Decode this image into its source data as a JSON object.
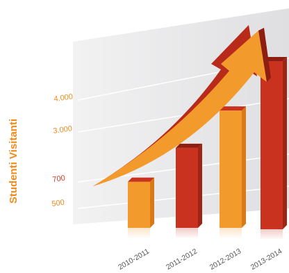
{
  "chart_data": {
    "type": "bar",
    "title": "",
    "xlabel": "",
    "ylabel": "Studenti Visitanti",
    "categories": [
      "2010-2011",
      "2011-2012",
      "2012-2013",
      "2013-2014"
    ],
    "series": [
      {
        "values": [
          500,
          1500,
          2600,
          4100
        ]
      }
    ],
    "yticks": [
      {
        "label": "500",
        "value": 500
      },
      {
        "label": "700",
        "value": 700
      },
      {
        "label": "3.000",
        "value": 3000
      },
      {
        "label": "4.000",
        "value": 4000
      }
    ],
    "trend_arrow": true,
    "grid": true,
    "perspective": "3d"
  },
  "colors": {
    "ylabel": "#f08c1e",
    "tick_orange": "#f08c1e",
    "tick_red": "#d23c28",
    "bar_orange": "#f39a2c",
    "bar_red": "#c8321e",
    "arrow_orange": "#f39a2c",
    "arrow_red": "#b82a1a",
    "backdrop": "#e9e9ea"
  }
}
